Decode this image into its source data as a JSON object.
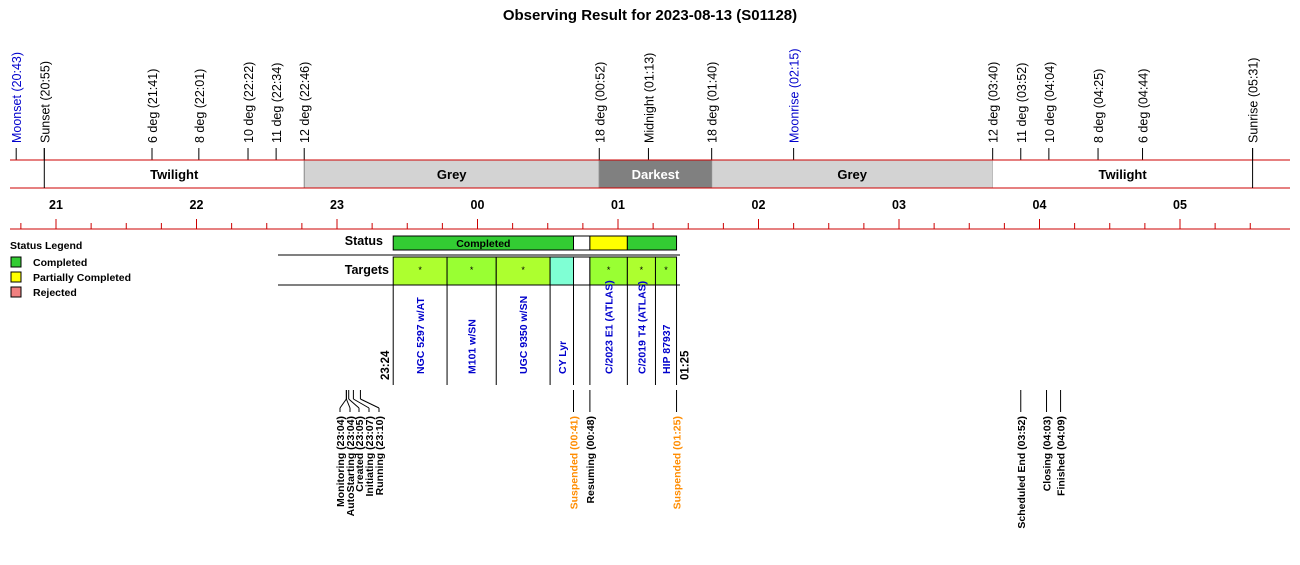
{
  "title": "Observing Result for 2023-08-13 (S01128)",
  "colors": {
    "axis_red": "#cc0000",
    "twilight_fill": "#ffffff",
    "grey_fill": "#d3d3d3",
    "darkest_fill": "#808080",
    "completed_green": "#33cc33",
    "partial_yellow": "#ffff00",
    "rejected_salmon": "#f08080",
    "target_green": "#99ff33",
    "target_lime": "#adff2f",
    "target_aqua": "#7fffd4",
    "moon_blue": "#0000cc",
    "suspended_orange": "#ff8c00"
  },
  "chart_data": {
    "type": "timeline",
    "x_unit": "hours (local time, wraps past midnight)",
    "x_range": [
      "20:38",
      "05:44"
    ],
    "hour_ticks": [
      {
        "label": "21",
        "t": "21:00"
      },
      {
        "label": "22",
        "t": "22:00"
      },
      {
        "label": "23",
        "t": "23:00"
      },
      {
        "label": "00",
        "t": "00:00"
      },
      {
        "label": "01",
        "t": "01:00"
      },
      {
        "label": "02",
        "t": "02:00"
      },
      {
        "label": "03",
        "t": "03:00"
      },
      {
        "label": "04",
        "t": "04:00"
      },
      {
        "label": "05",
        "t": "05:00"
      }
    ],
    "sky_events": [
      {
        "label": "Moonset (20:43)",
        "t": "20:43",
        "kind": "moon"
      },
      {
        "label": "Sunset (20:55)",
        "t": "20:55",
        "kind": "sun"
      },
      {
        "label": "6 deg (21:41)",
        "t": "21:41",
        "kind": "sun"
      },
      {
        "label": "8 deg (22:01)",
        "t": "22:01",
        "kind": "sun"
      },
      {
        "label": "10 deg (22:22)",
        "t": "22:22",
        "kind": "sun"
      },
      {
        "label": "11 deg (22:34)",
        "t": "22:34",
        "kind": "sun"
      },
      {
        "label": "12 deg (22:46)",
        "t": "22:46",
        "kind": "sun"
      },
      {
        "label": "18 deg (00:52)",
        "t": "00:52",
        "kind": "sun"
      },
      {
        "label": "Midnight (01:13)",
        "t": "01:13",
        "kind": "sun"
      },
      {
        "label": "18 deg (01:40)",
        "t": "01:40",
        "kind": "sun"
      },
      {
        "label": "Moonrise (02:15)",
        "t": "02:15",
        "kind": "moon"
      },
      {
        "label": "12 deg (03:40)",
        "t": "03:40",
        "kind": "sun"
      },
      {
        "label": "11 deg (03:52)",
        "t": "03:52",
        "kind": "sun"
      },
      {
        "label": "10 deg (04:04)",
        "t": "04:04",
        "kind": "sun"
      },
      {
        "label": "8 deg (04:25)",
        "t": "04:25",
        "kind": "sun"
      },
      {
        "label": "6 deg (04:44)",
        "t": "04:44",
        "kind": "sun"
      },
      {
        "label": "Sunrise (05:31)",
        "t": "05:31",
        "kind": "sun"
      }
    ],
    "sky_bands": [
      {
        "label": "Twilight",
        "start": "20:55",
        "end": "22:46",
        "shade": "twilight"
      },
      {
        "label": "Grey",
        "start": "22:46",
        "end": "00:52",
        "shade": "grey"
      },
      {
        "label": "Darkest",
        "start": "00:52",
        "end": "01:40",
        "shade": "darkest"
      },
      {
        "label": "Grey",
        "start": "01:40",
        "end": "03:40",
        "shade": "grey"
      },
      {
        "label": "Twilight",
        "start": "03:40",
        "end": "05:31",
        "shade": "twilight"
      }
    ],
    "status_row_label": "Status",
    "status_segments": [
      {
        "label": "Completed",
        "start": "23:24",
        "end": "00:41",
        "status": "completed"
      },
      {
        "label": "",
        "start": "00:41",
        "end": "00:48",
        "status": "none"
      },
      {
        "label": "",
        "start": "00:48",
        "end": "01:04",
        "status": "partial"
      },
      {
        "label": "",
        "start": "01:04",
        "end": "01:25",
        "status": "completed"
      }
    ],
    "targets_row_label": "Targets",
    "targets": [
      {
        "name": "NGC 5297 w/AT",
        "start": "23:24",
        "end": "23:47",
        "fill": "lime",
        "mark": "*"
      },
      {
        "name": "M101 w/SN",
        "start": "23:47",
        "end": "00:08",
        "fill": "green",
        "mark": "*"
      },
      {
        "name": "UGC 9350 w/SN",
        "start": "00:08",
        "end": "00:31",
        "fill": "lime",
        "mark": "*"
      },
      {
        "name": "CY Lyr",
        "start": "00:31",
        "end": "00:41",
        "fill": "aqua",
        "mark": ""
      },
      {
        "name": "",
        "start": "00:41",
        "end": "00:48",
        "fill": "none",
        "mark": ""
      },
      {
        "name": "C/2023 E1 (ATLAS)",
        "start": "00:48",
        "end": "01:04",
        "fill": "green",
        "mark": "*"
      },
      {
        "name": "C/2019 T4 (ATLAS)",
        "start": "01:04",
        "end": "01:16",
        "fill": "lime",
        "mark": "*"
      },
      {
        "name": "HIP 87937",
        "start": "01:16",
        "end": "01:25",
        "fill": "green",
        "mark": "*"
      }
    ],
    "range_start_label": {
      "label": "23:24",
      "t": "23:24"
    },
    "range_end_label": {
      "label": "01:25",
      "t": "01:25"
    },
    "timeline_events": [
      {
        "label": "Monitoring (23:04)",
        "t": "23:04",
        "color": "black"
      },
      {
        "label": "AutoStarting (23:04)",
        "t": "23:04",
        "color": "black"
      },
      {
        "label": "Created (23:05)",
        "t": "23:05",
        "color": "black"
      },
      {
        "label": "Initiating (23:07)",
        "t": "23:07",
        "color": "black"
      },
      {
        "label": "Running (23:10)",
        "t": "23:10",
        "color": "black"
      },
      {
        "label": "Suspended (00:41)",
        "t": "00:41",
        "color": "orange"
      },
      {
        "label": "Resuming (00:48)",
        "t": "00:48",
        "color": "black"
      },
      {
        "label": "Suspended (01:25)",
        "t": "01:25",
        "color": "orange"
      },
      {
        "label": "Scheduled End (03:52)",
        "t": "03:52",
        "color": "black"
      },
      {
        "label": "Closing (04:03)",
        "t": "04:03",
        "color": "black"
      },
      {
        "label": "Finished (04:09)",
        "t": "04:09",
        "color": "black"
      }
    ],
    "legend": {
      "title": "Status Legend",
      "items": [
        {
          "label": "Completed",
          "color": "#33cc33"
        },
        {
          "label": "Partially Completed",
          "color": "#ffff00"
        },
        {
          "label": "Rejected",
          "color": "#f08080"
        }
      ]
    }
  }
}
